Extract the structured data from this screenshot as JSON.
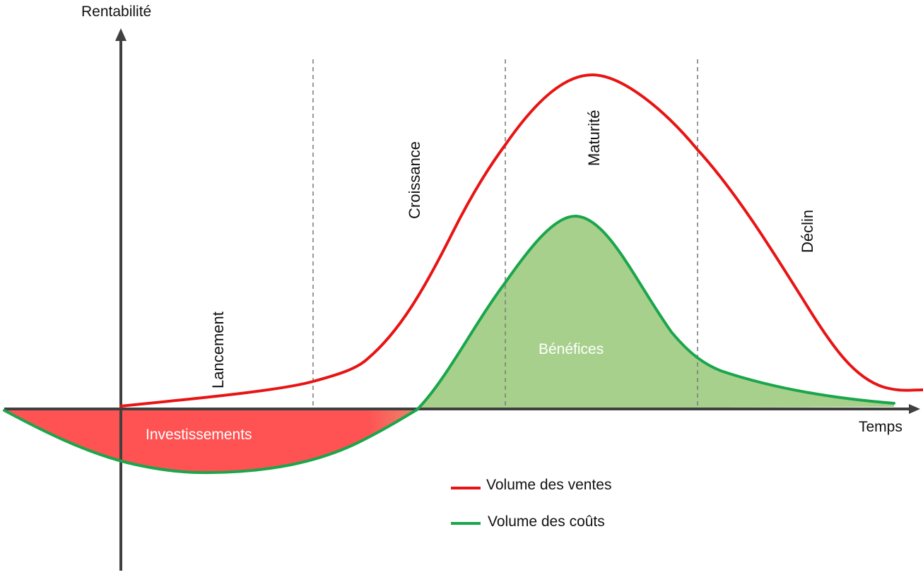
{
  "axes": {
    "y_title": "Rentabilité",
    "x_title": "Temps"
  },
  "phases": {
    "launch": "Lancement",
    "growth": "Croissance",
    "maturity": "Maturité",
    "decline": "Déclin"
  },
  "areas": {
    "profits": "Bénéfices",
    "investments": "Investissements"
  },
  "legend": {
    "sales": "Volume des ventes",
    "costs": "Volume des coûts"
  },
  "colors": {
    "sales_line": "#e81414",
    "costs_line": "#1aa64b",
    "investments_fill": "#ff5252",
    "profits_fill": "#a8d08d",
    "axis": "#404040",
    "divider": "#7f7f7f"
  }
}
